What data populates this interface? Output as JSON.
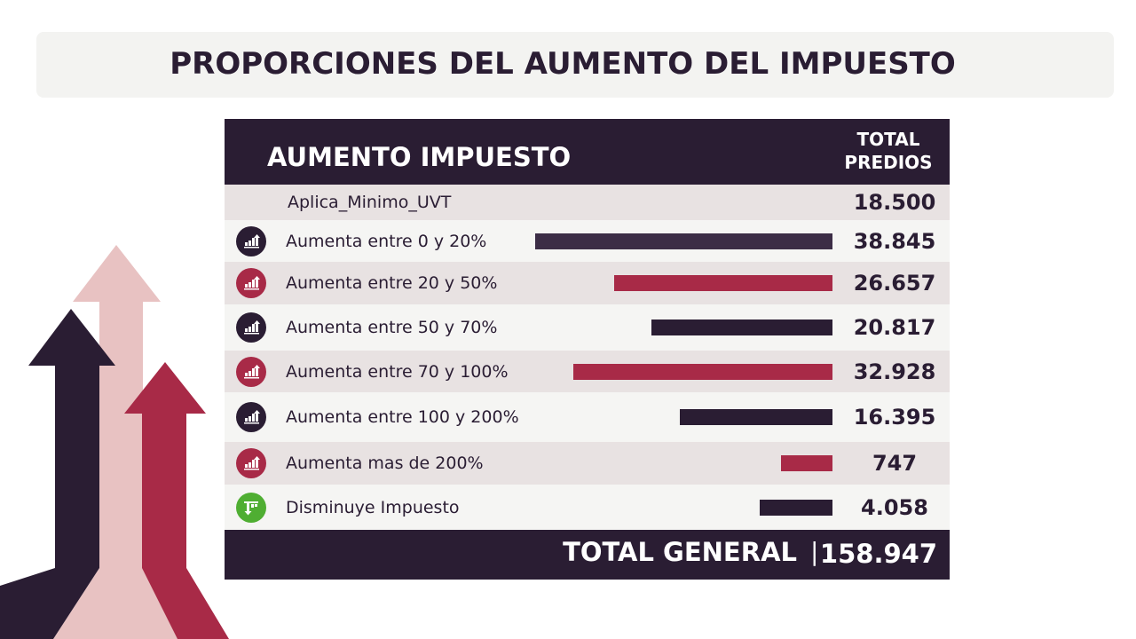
{
  "title": "PROPORCIONES DEL AUMENTO DEL IMPUESTO",
  "chart_data": {
    "type": "bar",
    "header": {
      "category": "AUMENTO IMPUESTO",
      "value": "TOTAL PREDIOS"
    },
    "rows": [
      {
        "label": "Aplica_Minimo_UVT",
        "value": 18500,
        "display": "18.500",
        "bar": false
      },
      {
        "label": "Aumenta entre 0 y 20%",
        "value": 38845,
        "display": "38.845",
        "color": "#3c2d46",
        "icon": "chart-up-icon",
        "icon_color": "#2a1d33"
      },
      {
        "label": "Aumenta entre 20 y 50%",
        "value": 26657,
        "display": "26.657",
        "color": "#a82a47",
        "icon": "chart-up-icon",
        "icon_color": "#a82a47"
      },
      {
        "label": "Aumenta entre 50 y 70%",
        "value": 20817,
        "display": "20.817",
        "color": "#2a1d33",
        "icon": "chart-up-icon",
        "icon_color": "#2a1d33"
      },
      {
        "label": "Aumenta entre 70 y 100%",
        "value": 32928,
        "display": "32.928",
        "color": "#a82a47",
        "icon": "chart-up-icon",
        "icon_color": "#a82a47"
      },
      {
        "label": "Aumenta entre 100 y 200%",
        "value": 16395,
        "display": "16.395",
        "color": "#2a1d33",
        "icon": "chart-up-icon",
        "icon_color": "#2a1d33"
      },
      {
        "label": "Aumenta mas de 200%",
        "value": 747,
        "display": "747",
        "color": "#a82a47",
        "icon": "chart-up-icon",
        "icon_color": "#a82a47"
      },
      {
        "label": "Disminuye Impuesto",
        "value": 4058,
        "display": "4.058",
        "color": "#2a1d33",
        "icon": "chart-down-icon",
        "icon_color": "#4fae32"
      }
    ],
    "total": {
      "label": "TOTAL GENERAL",
      "separator": "|",
      "value": 158947,
      "display": "158.947"
    }
  }
}
